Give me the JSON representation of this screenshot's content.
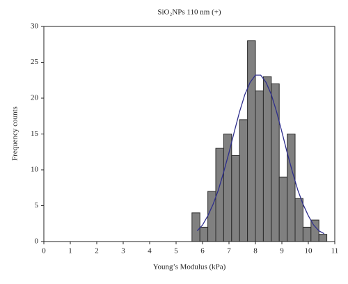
{
  "chart_data": {
    "type": "histogram",
    "title": "SiO₂NPs 110 nm (+)",
    "x_label": "Young’s Modulus (kPa)",
    "y_label": "Frequency counts",
    "bins": [
      5.6,
      5.9,
      6.2,
      6.5,
      6.8,
      7.1,
      7.4,
      7.7,
      8.0,
      8.3,
      8.6,
      8.9,
      9.2,
      9.5,
      9.8,
      10.1,
      10.4,
      10.7
    ],
    "values": [
      4,
      2,
      7,
      13,
      15,
      12,
      17,
      28,
      21,
      23,
      22,
      9,
      15,
      6,
      2,
      3,
      1
    ],
    "color": "#808080",
    "edge_color": "#2a2a2a",
    "fit": {
      "color": "#2e2e8c",
      "x": [
        5.8,
        6.0,
        6.2,
        6.4,
        6.6,
        6.8,
        7.0,
        7.2,
        7.4,
        7.6,
        7.8,
        8.0,
        8.2,
        8.4,
        8.6,
        8.8,
        9.0,
        9.2,
        9.4,
        9.6,
        9.8,
        10.0,
        10.2,
        10.4,
        10.6
      ],
      "values": [
        1.5,
        2.3,
        3.6,
        5.2,
        7.2,
        9.7,
        12.4,
        15.3,
        18.1,
        20.5,
        22.2,
        23.2,
        23.2,
        22.2,
        20.5,
        18.1,
        15.3,
        12.4,
        9.7,
        7.2,
        5.2,
        3.6,
        2.3,
        1.5,
        1.1
      ]
    },
    "xlim": [
      0,
      11
    ],
    "xticks": [
      0,
      1,
      2,
      3,
      4,
      5,
      6,
      7,
      8,
      9,
      10,
      11
    ],
    "ylim": [
      0,
      30
    ],
    "yticks": [
      0,
      5,
      10,
      15,
      20,
      25,
      30
    ]
  }
}
